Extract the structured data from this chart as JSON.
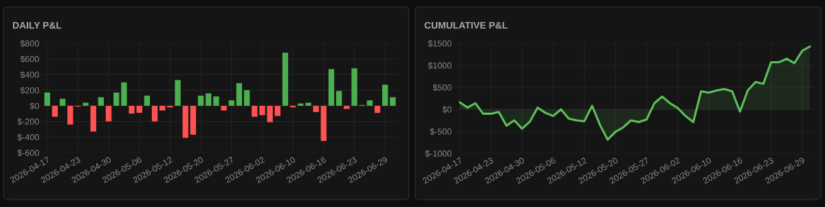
{
  "chart_data": [
    {
      "type": "bar",
      "title": "DAILY P&L",
      "categories": [
        "2026-04-17",
        null,
        null,
        null,
        "2026-04-23",
        null,
        null,
        null,
        "2026-04-30",
        null,
        null,
        null,
        "2026-05-06",
        null,
        null,
        null,
        "2026-05-12",
        null,
        null,
        null,
        "2026-05-20",
        null,
        null,
        null,
        "2026-05-27",
        null,
        null,
        null,
        "2026-06-02",
        null,
        null,
        null,
        "2026-06-10",
        null,
        null,
        null,
        "2026-06-16",
        null,
        null,
        null,
        "2026-06-23",
        null,
        null,
        null,
        "2026-06-29",
        null
      ],
      "values": [
        170,
        -140,
        90,
        -240,
        -10,
        40,
        -330,
        110,
        -200,
        170,
        300,
        -100,
        -90,
        130,
        -200,
        -60,
        -20,
        330,
        -410,
        -370,
        130,
        160,
        120,
        -60,
        70,
        290,
        200,
        -140,
        -120,
        -210,
        -130,
        680,
        -20,
        30,
        40,
        -80,
        -450,
        470,
        190,
        -40,
        480,
        10,
        70,
        -90,
        270,
        110
      ],
      "colors": [
        "#4caf50",
        "#ff5252",
        "#4caf50",
        "#ff5252",
        "#ff5252",
        "#4caf50",
        "#ff5252",
        "#4caf50",
        "#ff5252",
        "#4caf50",
        "#4caf50",
        "#ff5252",
        "#ff5252",
        "#4caf50",
        "#ff5252",
        "#ff5252",
        "#ff5252",
        "#4caf50",
        "#ff5252",
        "#ff5252",
        "#4caf50",
        "#4caf50",
        "#4caf50",
        "#ff5252",
        "#4caf50",
        "#4caf50",
        "#4caf50",
        "#ff5252",
        "#ff5252",
        "#ff5252",
        "#ff5252",
        "#4caf50",
        "#ff5252",
        "#4caf50",
        "#4caf50",
        "#ff5252",
        "#ff5252",
        "#4caf50",
        "#4caf50",
        "#ff5252",
        "#4caf50",
        "#4caf50",
        "#4caf50",
        "#ff5252",
        "#4caf50",
        "#4caf50"
      ],
      "ylim": [
        -600,
        800
      ],
      "yticks": [
        {
          "value": 800,
          "label": "$800"
        },
        {
          "value": 600,
          "label": "$600"
        },
        {
          "value": 400,
          "label": "$400"
        },
        {
          "value": 200,
          "label": "$200"
        },
        {
          "value": 0,
          "label": "$0"
        },
        {
          "value": -200,
          "label": "$-200"
        },
        {
          "value": -400,
          "label": "$-400"
        },
        {
          "value": -600,
          "label": "$-600"
        }
      ],
      "grid": true
    },
    {
      "type": "area",
      "title": "CUMULATIVE P&L",
      "categories": [
        "2026-04-17",
        null,
        null,
        null,
        "2026-04-23",
        null,
        null,
        null,
        "2026-04-30",
        null,
        null,
        null,
        "2026-05-06",
        null,
        null,
        null,
        "2026-05-12",
        null,
        null,
        null,
        "2026-05-20",
        null,
        null,
        null,
        "2026-05-27",
        null,
        null,
        null,
        "2026-06-02",
        null,
        null,
        null,
        "2026-06-10",
        null,
        null,
        null,
        "2026-06-16",
        null,
        null,
        null,
        "2026-06-23",
        null,
        null,
        null,
        "2026-06-29",
        null
      ],
      "series": [
        {
          "color": "#5cbf5c",
          "values": [
            160,
            40,
            140,
            -100,
            -100,
            -60,
            -370,
            -250,
            -440,
            -280,
            40,
            -80,
            -150,
            0,
            -210,
            -250,
            -270,
            80,
            -350,
            -690,
            -510,
            -410,
            -250,
            -290,
            -230,
            140,
            290,
            140,
            30,
            -150,
            -290,
            410,
            380,
            430,
            460,
            410,
            -50,
            430,
            620,
            580,
            1070,
            1070,
            1150,
            1050,
            1330,
            1430
          ]
        }
      ],
      "ylim": [
        -1000,
        1500
      ],
      "yticks": [
        {
          "value": 1500,
          "label": "$1500"
        },
        {
          "value": 1000,
          "label": "$1000"
        },
        {
          "value": 500,
          "label": "$500"
        },
        {
          "value": 0,
          "label": "$0"
        },
        {
          "value": -500,
          "label": "$-500"
        },
        {
          "value": -1000,
          "label": "$-1000"
        }
      ],
      "grid": true
    }
  ]
}
